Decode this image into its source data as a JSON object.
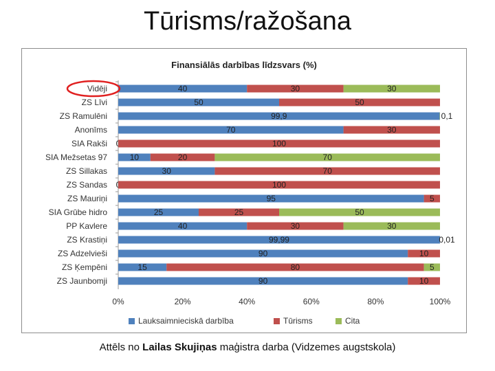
{
  "slide": {
    "title": "Tūrisms/ražošana",
    "caption_prefix": "Attēls no ",
    "caption_bold": "Lailas Skujiņas",
    "caption_suffix": " maģistra darba (Vidzemes augstskola)"
  },
  "chart_data": {
    "type": "bar",
    "orientation": "horizontal",
    "stacked": "percent",
    "title": "Finansiālās darbības līdzsvars (%)",
    "categories": [
      "Vidēji",
      "ZS Līvi",
      "ZS Ramulēni",
      "Anonīms",
      "SIA Rakši",
      "SIA Mežsetas 97",
      "ZS Sillakas",
      "ZS Sandas",
      "ZS Mauriņi",
      "SIA Grūbe hidro",
      "PP Kavlere",
      "ZS Krastiņi",
      "ZS Adzelvieši",
      "ZS Ķempēni",
      "ZS Jaunbomji"
    ],
    "series": [
      {
        "name": "Lauksaimnieciskā darbība",
        "color": "#4f81bd",
        "values": [
          40,
          50,
          99.9,
          70,
          0,
          10,
          30,
          0,
          95,
          25,
          40,
          99.99,
          90,
          15,
          90
        ],
        "labels": [
          "40",
          "50",
          "99,9",
          "70",
          "0",
          "10",
          "30",
          "0",
          "95",
          "25",
          "40",
          "99,99",
          "90",
          "15",
          "90"
        ]
      },
      {
        "name": "Tūrisms",
        "color": "#c0504d",
        "values": [
          30,
          50,
          0,
          30,
          100,
          20,
          70,
          100,
          5,
          25,
          30,
          0,
          10,
          80,
          10
        ],
        "labels": [
          "30",
          "50",
          "",
          "30",
          "100",
          "20",
          "70",
          "100",
          "5",
          "25",
          "30",
          "",
          "10",
          "80",
          "10"
        ]
      },
      {
        "name": "Cita",
        "color": "#9bbb59",
        "values": [
          30,
          0,
          0.1,
          0,
          0,
          70,
          0,
          0,
          0,
          50,
          30,
          0.01,
          0,
          5,
          0
        ],
        "labels": [
          "30",
          "",
          "0,1",
          "",
          "",
          "70",
          "",
          "",
          "",
          "50",
          "30",
          "0,01",
          "",
          "5",
          ""
        ]
      }
    ],
    "x_ticks": [
      "0%",
      "20%",
      "40%",
      "60%",
      "80%",
      "100%"
    ],
    "xlim": [
      0,
      100
    ],
    "legend_position": "bottom",
    "highlight": {
      "category": "Vidēji",
      "color": "#e02020"
    }
  }
}
